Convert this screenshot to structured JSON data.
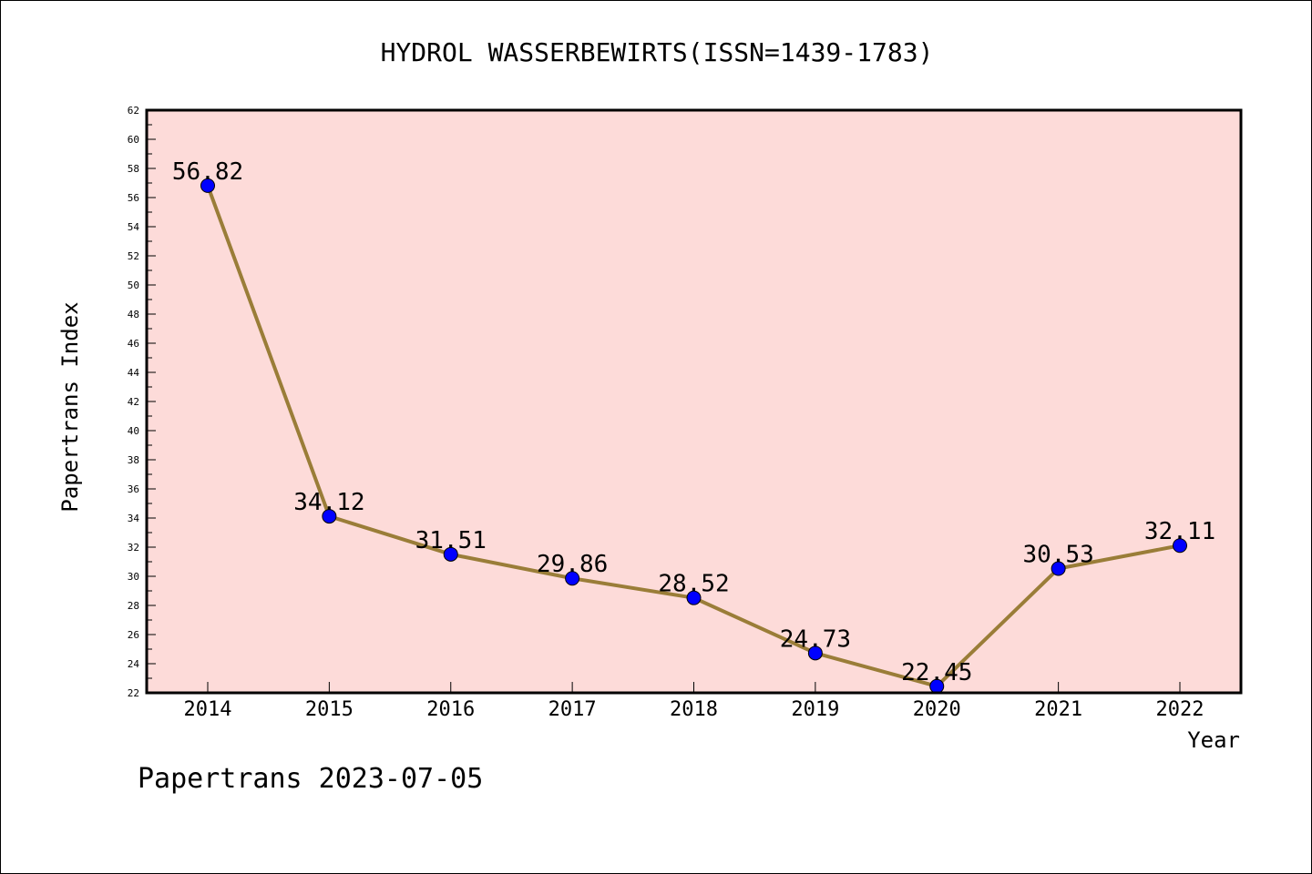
{
  "chart_data": {
    "type": "line",
    "title": "HYDROL WASSERBEWIRTS(ISSN=1439-1783)",
    "xlabel": "Year",
    "ylabel": "Papertrans Index",
    "categories": [
      "2014",
      "2015",
      "2016",
      "2017",
      "2018",
      "2019",
      "2020",
      "2021",
      "2022"
    ],
    "series": [
      {
        "values": [
          56.82,
          34.12,
          31.51,
          29.86,
          28.52,
          24.73,
          22.45,
          30.53,
          32.11
        ],
        "labels": [
          "56.82",
          "34.12",
          "31.51",
          "29.86",
          "28.52",
          "24.73",
          "22.45",
          "30.53",
          "32.11"
        ]
      }
    ],
    "ylim": [
      22,
      62
    ],
    "ytick_step": 2,
    "grid": false,
    "colors": {
      "plot_background": "#fddbd9",
      "line": "#9a7d38",
      "marker": "#0000ff"
    }
  },
  "footer": "Papertrans 2023-07-05"
}
